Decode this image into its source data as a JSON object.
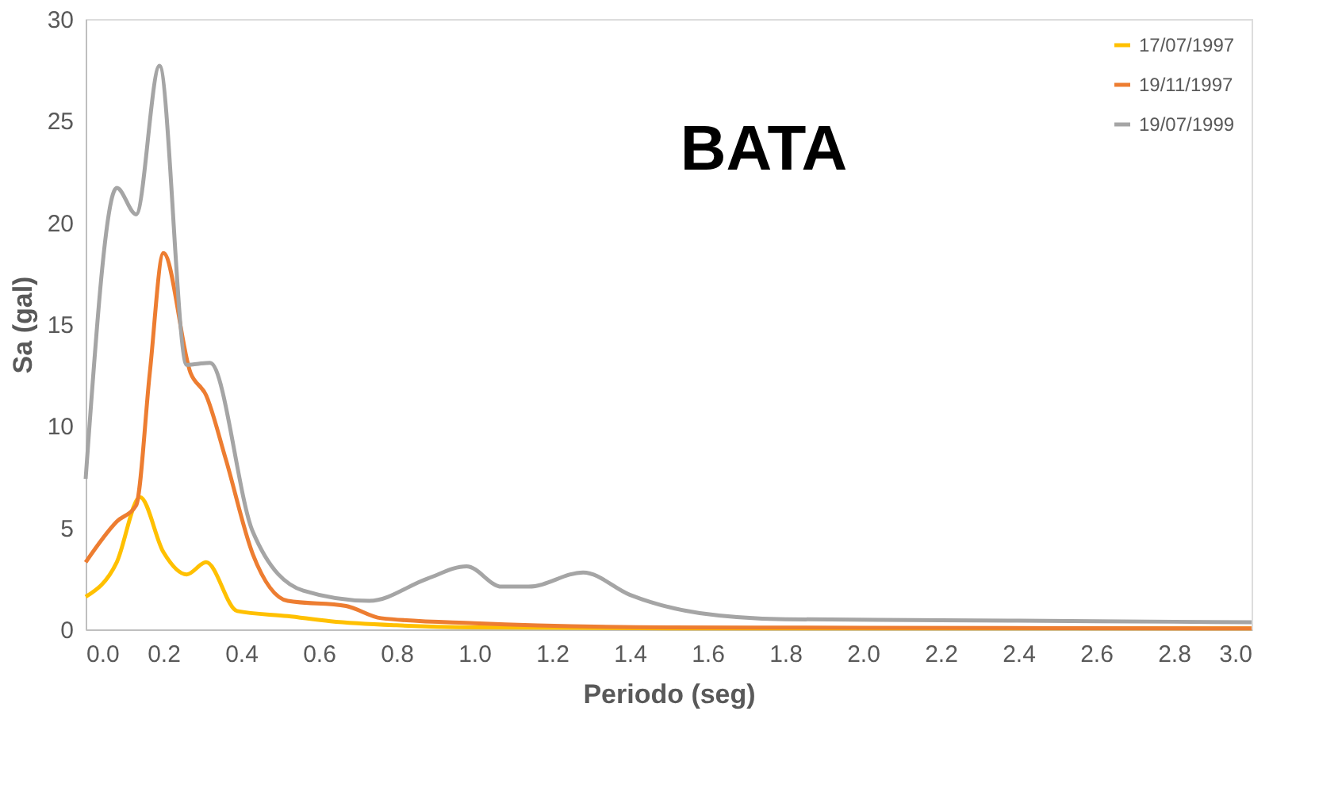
{
  "chart_data": {
    "type": "line",
    "title": "BATA",
    "xlabel": "Periodo (seg)",
    "ylabel": "Sa (gal)",
    "xlim": [
      0,
      3
    ],
    "ylim": [
      0,
      30
    ],
    "xticks": [
      {
        "value": 0,
        "label": "0.0"
      },
      0.2,
      0.4,
      0.6,
      0.8,
      {
        "value": 1,
        "label": "1.0"
      },
      1.2,
      1.4,
      1.6,
      1.8,
      {
        "value": 2,
        "label": "2.0"
      },
      2.2,
      2.4,
      2.6,
      2.8,
      {
        "value": 3,
        "label": "3.0"
      }
    ],
    "yticks": [
      0,
      5,
      10,
      15,
      20,
      25,
      30
    ],
    "grid": false,
    "legend": "top right",
    "marker": "none",
    "line_style": "solid",
    "series": [
      {
        "name": "17/07/1997",
        "color": "#ffc000",
        "x": [
          0,
          0.08,
          0.14,
          0.2,
          0.26,
          0.31,
          0.39,
          0.52,
          0.63,
          0.8,
          1.0,
          1.5,
          2.0,
          3.0
        ],
        "values": [
          1.6,
          3.3,
          6.5,
          3.8,
          2.7,
          3.3,
          0.9,
          0.65,
          0.4,
          0.2,
          0.1,
          0.05,
          0.05,
          0.05
        ]
      },
      {
        "name": "19/11/1997",
        "color": "#ed7d31",
        "x": [
          0,
          0.08,
          0.13,
          0.165,
          0.2,
          0.27,
          0.31,
          0.36,
          0.43,
          0.52,
          0.67,
          0.76,
          1.0,
          1.5,
          2.0,
          3.0
        ],
        "values": [
          3.3,
          5.3,
          6.1,
          12.6,
          18.5,
          12.6,
          11.5,
          8.4,
          3.7,
          1.4,
          1.15,
          0.55,
          0.3,
          0.1,
          0.08,
          0.05
        ]
      },
      {
        "name": "19/07/1999",
        "color": "#a5a5a5",
        "x": [
          0,
          0.08,
          0.13,
          0.19,
          0.26,
          0.32,
          0.43,
          0.56,
          0.73,
          0.88,
          0.98,
          1.07,
          1.14,
          1.28,
          1.4,
          1.58,
          1.8,
          2.2,
          2.6,
          3.0
        ],
        "values": [
          7.4,
          21.7,
          20.4,
          27.7,
          13.0,
          13.1,
          4.8,
          1.9,
          1.4,
          2.5,
          3.1,
          2.1,
          2.1,
          2.8,
          1.7,
          0.8,
          0.5,
          0.45,
          0.4,
          0.35
        ]
      }
    ]
  }
}
